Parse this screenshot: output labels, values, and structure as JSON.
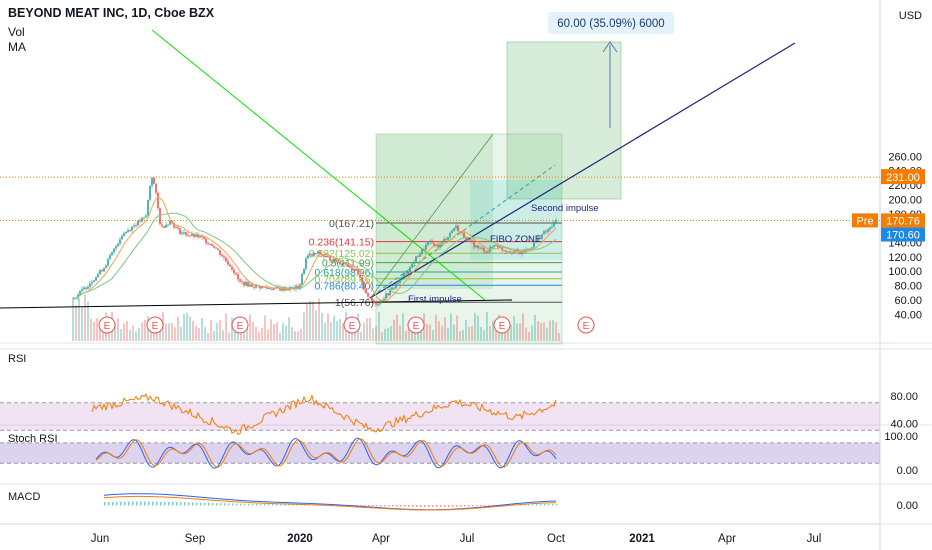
{
  "header": {
    "symbol_line": "BEYOND MEAT INC, 1D, Cboe BZX",
    "indicators": [
      "Vol",
      "MA"
    ]
  },
  "colors": {
    "candle_up": "#26a69a",
    "candle_down": "#ef5350",
    "price_tag": "#1e88e5",
    "pre_tag": "#f57c00",
    "target_tag": "#f57c00",
    "rsi_line": "#f57c00",
    "rsi_band": "#e1bee7",
    "stoch_band": "#b39ddb",
    "macd_line": "#2962ff",
    "signal_line": "#f57c00",
    "downtrend": "#00e600",
    "uptrend": "#1a237e",
    "support": "#000000"
  },
  "price_axis": {
    "currency": "USD",
    "ticks": [
      "260.00",
      "240.00",
      "220.00",
      "200.00",
      "180.00",
      "160.00",
      "140.00",
      "120.00",
      "100.00",
      "80.00",
      "60.00",
      "40.00"
    ],
    "target_label": "231.00",
    "pre_label": "Pre",
    "pre_value": "170.76",
    "last_value": "170.60"
  },
  "time_axis": [
    "Jun",
    "Sep",
    "2020",
    "Apr",
    "Jul",
    "Oct",
    "2021",
    "Apr",
    "Jul"
  ],
  "earnings_marker": "E",
  "fibonacci": [
    {
      "label": "0(167.21)",
      "color": "#555555"
    },
    {
      "label": "0.236(141.15)",
      "color": "#e53935"
    },
    {
      "label": "0.382(125.02)",
      "color": "#8bc34a"
    },
    {
      "label": "0.5(111.99)",
      "color": "#43a047"
    },
    {
      "label": "0.618(98.96)",
      "color": "#26a69a"
    },
    {
      "label": "0.704(89.46)",
      "color": "#8bc34a"
    },
    {
      "label": "0.786(80.40)",
      "color": "#1e88e5"
    },
    {
      "label": "1(56.76)",
      "color": "#555555"
    }
  ],
  "annotations": {
    "target_box": "60.00 (35.09%) 6000",
    "first_impulse": "First impulse",
    "second_impulse": "Second impulse",
    "fibo_zone": "FIBO ZONE"
  },
  "rsi": {
    "label": "RSI",
    "ticks": [
      "80.00",
      "40.00"
    ]
  },
  "stoch": {
    "label": "Stoch RSI",
    "ticks": [
      "100.00",
      "0.00"
    ]
  },
  "macd": {
    "label": "MACD",
    "ticks": [
      "0.00"
    ]
  },
  "chart_data": {
    "type": "candlestick",
    "title": "BEYOND MEAT INC, 1D, Cboe BZX",
    "ylim": [
      30,
      260
    ],
    "price_path": [
      [
        "2019-05-02",
        60
      ],
      [
        "2019-05-20",
        82
      ],
      [
        "2019-06-05",
        105
      ],
      [
        "2019-06-14",
        125
      ],
      [
        "2019-06-24",
        150
      ],
      [
        "2019-07-08",
        165
      ],
      [
        "2019-07-20",
        175
      ],
      [
        "2019-07-26",
        235
      ],
      [
        "2019-07-30",
        215
      ],
      [
        "2019-08-05",
        160
      ],
      [
        "2019-08-15",
        170
      ],
      [
        "2019-08-25",
        155
      ],
      [
        "2019-09-05",
        150
      ],
      [
        "2019-09-15",
        148
      ],
      [
        "2019-10-01",
        135
      ],
      [
        "2019-10-20",
        105
      ],
      [
        "2019-10-28",
        85
      ],
      [
        "2019-11-10",
        80
      ],
      [
        "2019-11-25",
        77
      ],
      [
        "2019-12-10",
        75
      ],
      [
        "2019-12-31",
        77
      ],
      [
        "2020-01-08",
        120
      ],
      [
        "2020-01-20",
        125
      ],
      [
        "2020-02-05",
        115
      ],
      [
        "2020-02-20",
        110
      ],
      [
        "2020-03-01",
        100
      ],
      [
        "2020-03-10",
        75
      ],
      [
        "2020-03-16",
        60
      ],
      [
        "2020-03-23",
        55
      ],
      [
        "2020-04-05",
        70
      ],
      [
        "2020-04-15",
        85
      ],
      [
        "2020-04-25",
        100
      ],
      [
        "2020-05-05",
        120
      ],
      [
        "2020-05-18",
        140
      ],
      [
        "2020-05-28",
        135
      ],
      [
        "2020-06-08",
        150
      ],
      [
        "2020-06-15",
        163
      ],
      [
        "2020-06-22",
        152
      ],
      [
        "2020-07-01",
        140
      ],
      [
        "2020-07-10",
        132
      ],
      [
        "2020-07-20",
        128
      ],
      [
        "2020-07-28",
        138
      ],
      [
        "2020-08-05",
        130
      ],
      [
        "2020-08-15",
        128
      ],
      [
        "2020-08-25",
        125
      ],
      [
        "2020-09-05",
        135
      ],
      [
        "2020-09-15",
        150
      ],
      [
        "2020-09-25",
        160
      ],
      [
        "2020-10-01",
        170.6
      ]
    ],
    "volume_bars_shown": true,
    "fib_levels": [
      167.21,
      141.15,
      125.02,
      111.99,
      98.96,
      89.46,
      80.4,
      56.76
    ],
    "target_move": {
      "from": 170.6,
      "to": 231.0,
      "change": 60.0,
      "percent": 35.09,
      "ticks": 6000
    },
    "pre_market": 170.76,
    "last": 170.6,
    "rsi_path": [
      [
        "2019-06-01",
        64
      ],
      [
        "2019-07-26",
        78
      ],
      [
        "2019-10-25",
        28
      ],
      [
        "2020-01-10",
        78
      ],
      [
        "2020-03-18",
        30
      ],
      [
        "2020-06-15",
        72
      ],
      [
        "2020-08-20",
        48
      ],
      [
        "2020-10-01",
        68
      ]
    ],
    "rsi_band": [
      30,
      70
    ],
    "stoch_band": [
      20,
      80
    ],
    "macd_ticks": [
      "0.00"
    ]
  }
}
